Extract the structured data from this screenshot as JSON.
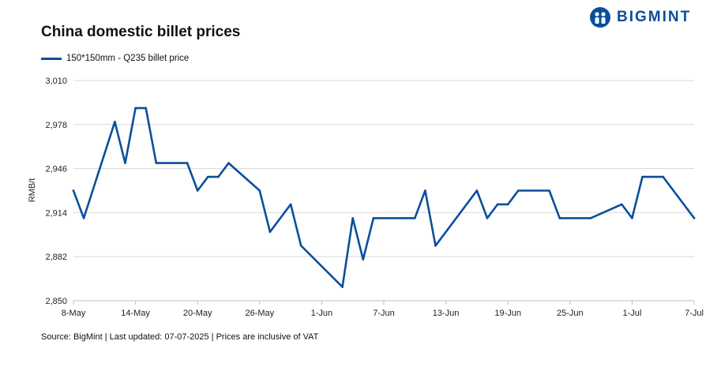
{
  "header": {
    "title": "China domestic billet prices",
    "brand": "BIGMINT"
  },
  "footer": {
    "source": "Source: BigMint | Last updated: 07-07-2025 | Prices are inclusive of VAT"
  },
  "colors": {
    "line": "#0b4f9c",
    "grid": "#d9d9d9",
    "brand": "#0b4f9c"
  },
  "chart_data": {
    "type": "line",
    "title": "China domestic billet prices",
    "ylabel": "RMB/t",
    "xlabel": "",
    "ylim": [
      2850,
      3010
    ],
    "yticks": [
      2850,
      2882,
      2914,
      2946,
      2978,
      3010
    ],
    "ytick_labels": [
      "2,850",
      "2,882",
      "2,914",
      "2,946",
      "2,978",
      "3,010"
    ],
    "xlim": [
      "2025-05-08",
      "2025-07-07"
    ],
    "xticks": [
      "2025-05-08",
      "2025-05-14",
      "2025-05-20",
      "2025-05-26",
      "2025-06-01",
      "2025-06-07",
      "2025-06-13",
      "2025-06-19",
      "2025-06-25",
      "2025-07-01",
      "2025-07-07"
    ],
    "xtick_labels": [
      "8-May",
      "14-May",
      "20-May",
      "26-May",
      "1-Jun",
      "7-Jun",
      "13-Jun",
      "19-Jun",
      "25-Jun",
      "1-Jul",
      "7-Jul"
    ],
    "grid": true,
    "legend_position": "top-left",
    "series": [
      {
        "name": "150*150mm - Q235 billet price",
        "points": [
          [
            "2025-05-08",
            2930
          ],
          [
            "2025-05-09",
            2910
          ],
          [
            "2025-05-12",
            2980
          ],
          [
            "2025-05-13",
            2950
          ],
          [
            "2025-05-14",
            2990
          ],
          [
            "2025-05-15",
            2990
          ],
          [
            "2025-05-16",
            2950
          ],
          [
            "2025-05-19",
            2950
          ],
          [
            "2025-05-20",
            2930
          ],
          [
            "2025-05-21",
            2940
          ],
          [
            "2025-05-22",
            2940
          ],
          [
            "2025-05-23",
            2950
          ],
          [
            "2025-05-26",
            2930
          ],
          [
            "2025-05-27",
            2900
          ],
          [
            "2025-05-29",
            2920
          ],
          [
            "2025-05-30",
            2890
          ],
          [
            "2025-06-03",
            2860
          ],
          [
            "2025-06-04",
            2910
          ],
          [
            "2025-06-05",
            2880
          ],
          [
            "2025-06-06",
            2910
          ],
          [
            "2025-06-09",
            2910
          ],
          [
            "2025-06-10",
            2910
          ],
          [
            "2025-06-11",
            2930
          ],
          [
            "2025-06-12",
            2890
          ],
          [
            "2025-06-16",
            2930
          ],
          [
            "2025-06-17",
            2910
          ],
          [
            "2025-06-18",
            2920
          ],
          [
            "2025-06-19",
            2920
          ],
          [
            "2025-06-20",
            2930
          ],
          [
            "2025-06-23",
            2930
          ],
          [
            "2025-06-24",
            2910
          ],
          [
            "2025-06-27",
            2910
          ],
          [
            "2025-06-30",
            2920
          ],
          [
            "2025-07-01",
            2910
          ],
          [
            "2025-07-02",
            2940
          ],
          [
            "2025-07-04",
            2940
          ],
          [
            "2025-07-07",
            2910
          ]
        ]
      }
    ]
  }
}
